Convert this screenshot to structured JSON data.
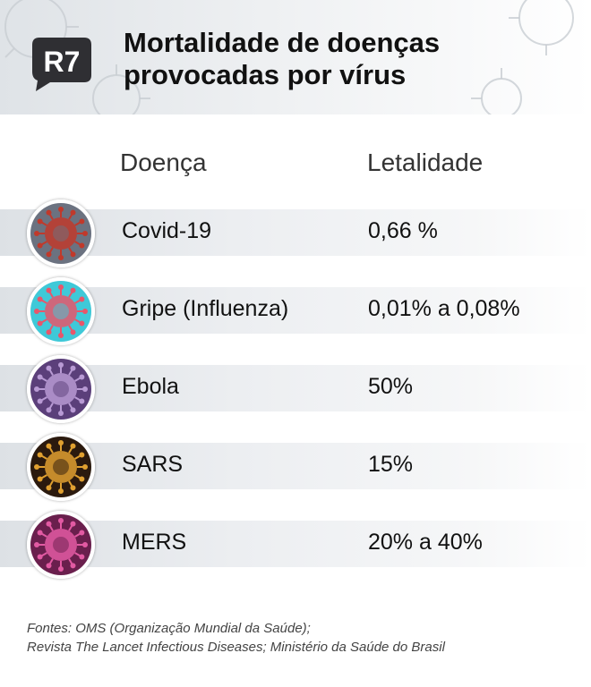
{
  "brand": {
    "logo_text": "R7"
  },
  "title_lines": [
    "Mortalidade de doenças",
    "provocadas por vírus"
  ],
  "chart_data": {
    "type": "table",
    "columns": [
      "Doença",
      "Letalidade"
    ],
    "rows": [
      {
        "disease": "Covid-19",
        "lethality": "0,66 %",
        "icon": "covid-virus-icon",
        "colors": [
          "#6b7280",
          "#c0392b"
        ]
      },
      {
        "disease": "Gripe (Influenza)",
        "lethality": "0,01% a 0,08%",
        "icon": "influenza-virus-icon",
        "colors": [
          "#3fc9d8",
          "#e8566b"
        ]
      },
      {
        "disease": "Ebola",
        "lethality": "50%",
        "icon": "ebola-virus-icon",
        "colors": [
          "#5b3f7a",
          "#b89ad4"
        ]
      },
      {
        "disease": "SARS",
        "lethality": "15%",
        "icon": "sars-virus-icon",
        "colors": [
          "#2b1a0e",
          "#e0a030"
        ]
      },
      {
        "disease": "MERS",
        "lethality": "20% a 40%",
        "icon": "mers-virus-icon",
        "colors": [
          "#6a1f4d",
          "#e25aa3"
        ]
      }
    ]
  },
  "sources": [
    "Fontes: OMS (Organização Mundial da Saúde);",
    "Revista The Lancet Infectious Diseases; Ministério da Saúde do Brasil"
  ]
}
